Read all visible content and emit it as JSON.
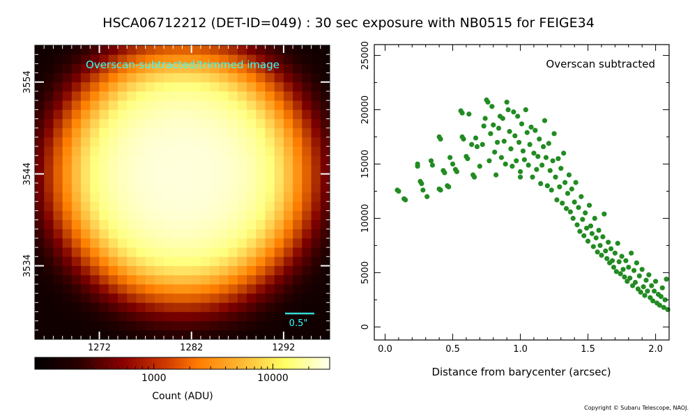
{
  "title": "HSCA06712212 (DET-ID=049) :  30 sec exposure with NB0515 for FEIGE34",
  "copyright": "Copyright © Subaru Telescope, NAOJ.",
  "chart_data": [
    {
      "type": "heatmap",
      "annotation": "Overscan-subtracted/trimmed image",
      "scalebar_label": "0.5\"",
      "colormap": "afmhot",
      "x_ticks": [
        1272,
        1282,
        1292
      ],
      "y_ticks": [
        3534,
        3544,
        3554
      ],
      "xlim": [
        1265,
        1297
      ],
      "ylim": [
        3526,
        3558
      ],
      "peak_center": [
        1281,
        3544
      ],
      "peak_value": 20000,
      "background_value": 120,
      "colorbar": {
        "label": "Count (ADU)",
        "scale": "log",
        "tick_labels": [
          "1000",
          "10000"
        ],
        "tick_values": [
          1000,
          10000
        ],
        "range": [
          100,
          30000
        ]
      }
    },
    {
      "type": "scatter",
      "annotation": "Overscan subtracted",
      "xlabel": "Distance from barycenter (arcsec)",
      "ylabel": "",
      "xlim": [
        -0.08,
        2.1
      ],
      "ylim": [
        -1200,
        26000
      ],
      "x_ticks": [
        0.0,
        0.5,
        1.0,
        1.5,
        2.0
      ],
      "x_tick_labels": [
        "0.0",
        "0.5",
        "1.0",
        "1.5",
        "2.0"
      ],
      "y_ticks": [
        0,
        5000,
        10000,
        15000,
        20000,
        25000
      ],
      "y_tick_labels": [
        "0",
        "5000",
        "10000",
        "15000",
        "20000",
        "25000"
      ],
      "color": "#228b22",
      "points": [
        [
          0.09,
          12600
        ],
        [
          0.1,
          12500
        ],
        [
          0.14,
          11800
        ],
        [
          0.15,
          11700
        ],
        [
          0.24,
          15000
        ],
        [
          0.24,
          14800
        ],
        [
          0.26,
          13400
        ],
        [
          0.27,
          13200
        ],
        [
          0.28,
          12600
        ],
        [
          0.31,
          12000
        ],
        [
          0.34,
          15300
        ],
        [
          0.35,
          14900
        ],
        [
          0.4,
          17500
        ],
        [
          0.41,
          17300
        ],
        [
          0.4,
          12700
        ],
        [
          0.41,
          12600
        ],
        [
          0.43,
          14400
        ],
        [
          0.44,
          14200
        ],
        [
          0.46,
          13000
        ],
        [
          0.47,
          12900
        ],
        [
          0.48,
          15600
        ],
        [
          0.5,
          15000
        ],
        [
          0.52,
          14500
        ],
        [
          0.53,
          14300
        ],
        [
          0.56,
          19900
        ],
        [
          0.57,
          19700
        ],
        [
          0.57,
          17500
        ],
        [
          0.58,
          17300
        ],
        [
          0.6,
          15700
        ],
        [
          0.61,
          15500
        ],
        [
          0.62,
          19600
        ],
        [
          0.64,
          16800
        ],
        [
          0.65,
          14000
        ],
        [
          0.66,
          13800
        ],
        [
          0.67,
          17400
        ],
        [
          0.68,
          16600
        ],
        [
          0.7,
          14800
        ],
        [
          0.72,
          16800
        ],
        [
          0.73,
          18500
        ],
        [
          0.74,
          19200
        ],
        [
          0.75,
          20900
        ],
        [
          0.76,
          20700
        ],
        [
          0.77,
          15300
        ],
        [
          0.78,
          17800
        ],
        [
          0.79,
          20300
        ],
        [
          0.8,
          18600
        ],
        [
          0.81,
          16100
        ],
        [
          0.82,
          14000
        ],
        [
          0.83,
          17000
        ],
        [
          0.84,
          18300
        ],
        [
          0.85,
          19400
        ],
        [
          0.86,
          15600
        ],
        [
          0.87,
          19200
        ],
        [
          0.88,
          17100
        ],
        [
          0.89,
          15000
        ],
        [
          0.9,
          20700
        ],
        [
          0.91,
          20000
        ],
        [
          0.92,
          18000
        ],
        [
          0.93,
          16400
        ],
        [
          0.94,
          14800
        ],
        [
          0.95,
          19800
        ],
        [
          0.96,
          17600
        ],
        [
          0.97,
          15300
        ],
        [
          0.98,
          19400
        ],
        [
          0.99,
          17000
        ],
        [
          1.0,
          14300
        ],
        [
          1.0,
          13800
        ],
        [
          1.01,
          18700
        ],
        [
          1.02,
          16200
        ],
        [
          1.03,
          15400
        ],
        [
          1.04,
          20000
        ],
        [
          1.05,
          17900
        ],
        [
          1.06,
          14900
        ],
        [
          1.07,
          16800
        ],
        [
          1.08,
          18400
        ],
        [
          1.09,
          13800
        ],
        [
          1.1,
          16000
        ],
        [
          1.11,
          18100
        ],
        [
          1.12,
          14500
        ],
        [
          1.13,
          15700
        ],
        [
          1.14,
          17300
        ],
        [
          1.15,
          13200
        ],
        [
          1.16,
          14900
        ],
        [
          1.17,
          16600
        ],
        [
          1.18,
          19000
        ],
        [
          1.19,
          15600
        ],
        [
          1.2,
          13000
        ],
        [
          1.21,
          16900
        ],
        [
          1.22,
          14400
        ],
        [
          1.23,
          12600
        ],
        [
          1.24,
          15300
        ],
        [
          1.25,
          17800
        ],
        [
          1.26,
          13800
        ],
        [
          1.27,
          11700
        ],
        [
          1.28,
          15500
        ],
        [
          1.29,
          12900
        ],
        [
          1.3,
          14600
        ],
        [
          1.31,
          11400
        ],
        [
          1.32,
          16000
        ],
        [
          1.33,
          13300
        ],
        [
          1.34,
          10900
        ],
        [
          1.35,
          12300
        ],
        [
          1.36,
          14000
        ],
        [
          1.37,
          10600
        ],
        [
          1.38,
          12700
        ],
        [
          1.39,
          10000
        ],
        [
          1.4,
          11500
        ],
        [
          1.41,
          13300
        ],
        [
          1.42,
          9400
        ],
        [
          1.43,
          11000
        ],
        [
          1.44,
          8800
        ],
        [
          1.45,
          12000
        ],
        [
          1.46,
          9900
        ],
        [
          1.47,
          8400
        ],
        [
          1.48,
          10500
        ],
        [
          1.49,
          9100
        ],
        [
          1.5,
          7900
        ],
        [
          1.51,
          11200
        ],
        [
          1.52,
          9300
        ],
        [
          1.53,
          8600
        ],
        [
          1.54,
          7400
        ],
        [
          1.55,
          10000
        ],
        [
          1.56,
          8200
        ],
        [
          1.57,
          6900
        ],
        [
          1.58,
          8900
        ],
        [
          1.59,
          7500
        ],
        [
          1.6,
          6600
        ],
        [
          1.61,
          8300
        ],
        [
          1.62,
          10400
        ],
        [
          1.63,
          7000
        ],
        [
          1.64,
          6300
        ],
        [
          1.65,
          7800
        ],
        [
          1.66,
          5900
        ],
        [
          1.67,
          7200
        ],
        [
          1.68,
          6100
        ],
        [
          1.69,
          5500
        ],
        [
          1.7,
          6800
        ],
        [
          1.71,
          5100
        ],
        [
          1.72,
          7700
        ],
        [
          1.73,
          6000
        ],
        [
          1.74,
          4900
        ],
        [
          1.75,
          6500
        ],
        [
          1.76,
          5300
        ],
        [
          1.77,
          4600
        ],
        [
          1.78,
          6100
        ],
        [
          1.79,
          4200
        ],
        [
          1.8,
          5500
        ],
        [
          1.81,
          4500
        ],
        [
          1.82,
          6800
        ],
        [
          1.83,
          3800
        ],
        [
          1.84,
          5200
        ],
        [
          1.85,
          4100
        ],
        [
          1.86,
          5900
        ],
        [
          1.87,
          3500
        ],
        [
          1.88,
          4700
        ],
        [
          1.89,
          3200
        ],
        [
          1.9,
          5300
        ],
        [
          1.91,
          3700
        ],
        [
          1.92,
          2900
        ],
        [
          1.93,
          4300
        ],
        [
          1.94,
          3300
        ],
        [
          1.95,
          4800
        ],
        [
          1.96,
          2700
        ],
        [
          1.97,
          3800
        ],
        [
          1.98,
          2400
        ],
        [
          1.99,
          3300
        ],
        [
          2.0,
          4200
        ],
        [
          2.01,
          2200
        ],
        [
          2.02,
          3000
        ],
        [
          2.03,
          2000
        ],
        [
          2.04,
          2800
        ],
        [
          2.05,
          3600
        ],
        [
          2.06,
          1800
        ],
        [
          2.07,
          2500
        ],
        [
          2.08,
          4400
        ],
        [
          2.09,
          1600
        ]
      ]
    }
  ]
}
